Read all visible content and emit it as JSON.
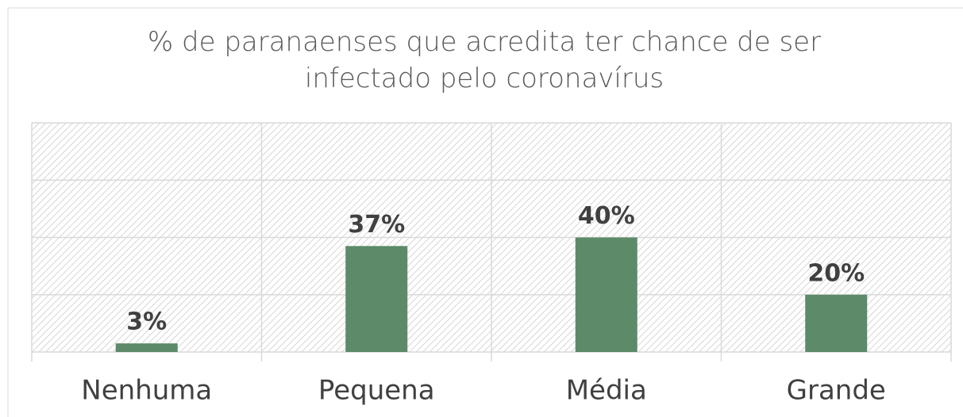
{
  "chart_data": {
    "type": "bar",
    "title": "% de paranaenses que acredita ter chance de ser infectado pelo coronavírus",
    "categories": [
      "Nenhuma",
      "Pequena",
      "Média",
      "Grande"
    ],
    "values": [
      3,
      37,
      40,
      20
    ],
    "value_labels": [
      "3%",
      "37%",
      "40%",
      "20%"
    ],
    "color": "#5d8a68",
    "ylim": [
      0,
      80
    ],
    "yticks": [
      0,
      20,
      40,
      60,
      80
    ],
    "grid": true
  }
}
